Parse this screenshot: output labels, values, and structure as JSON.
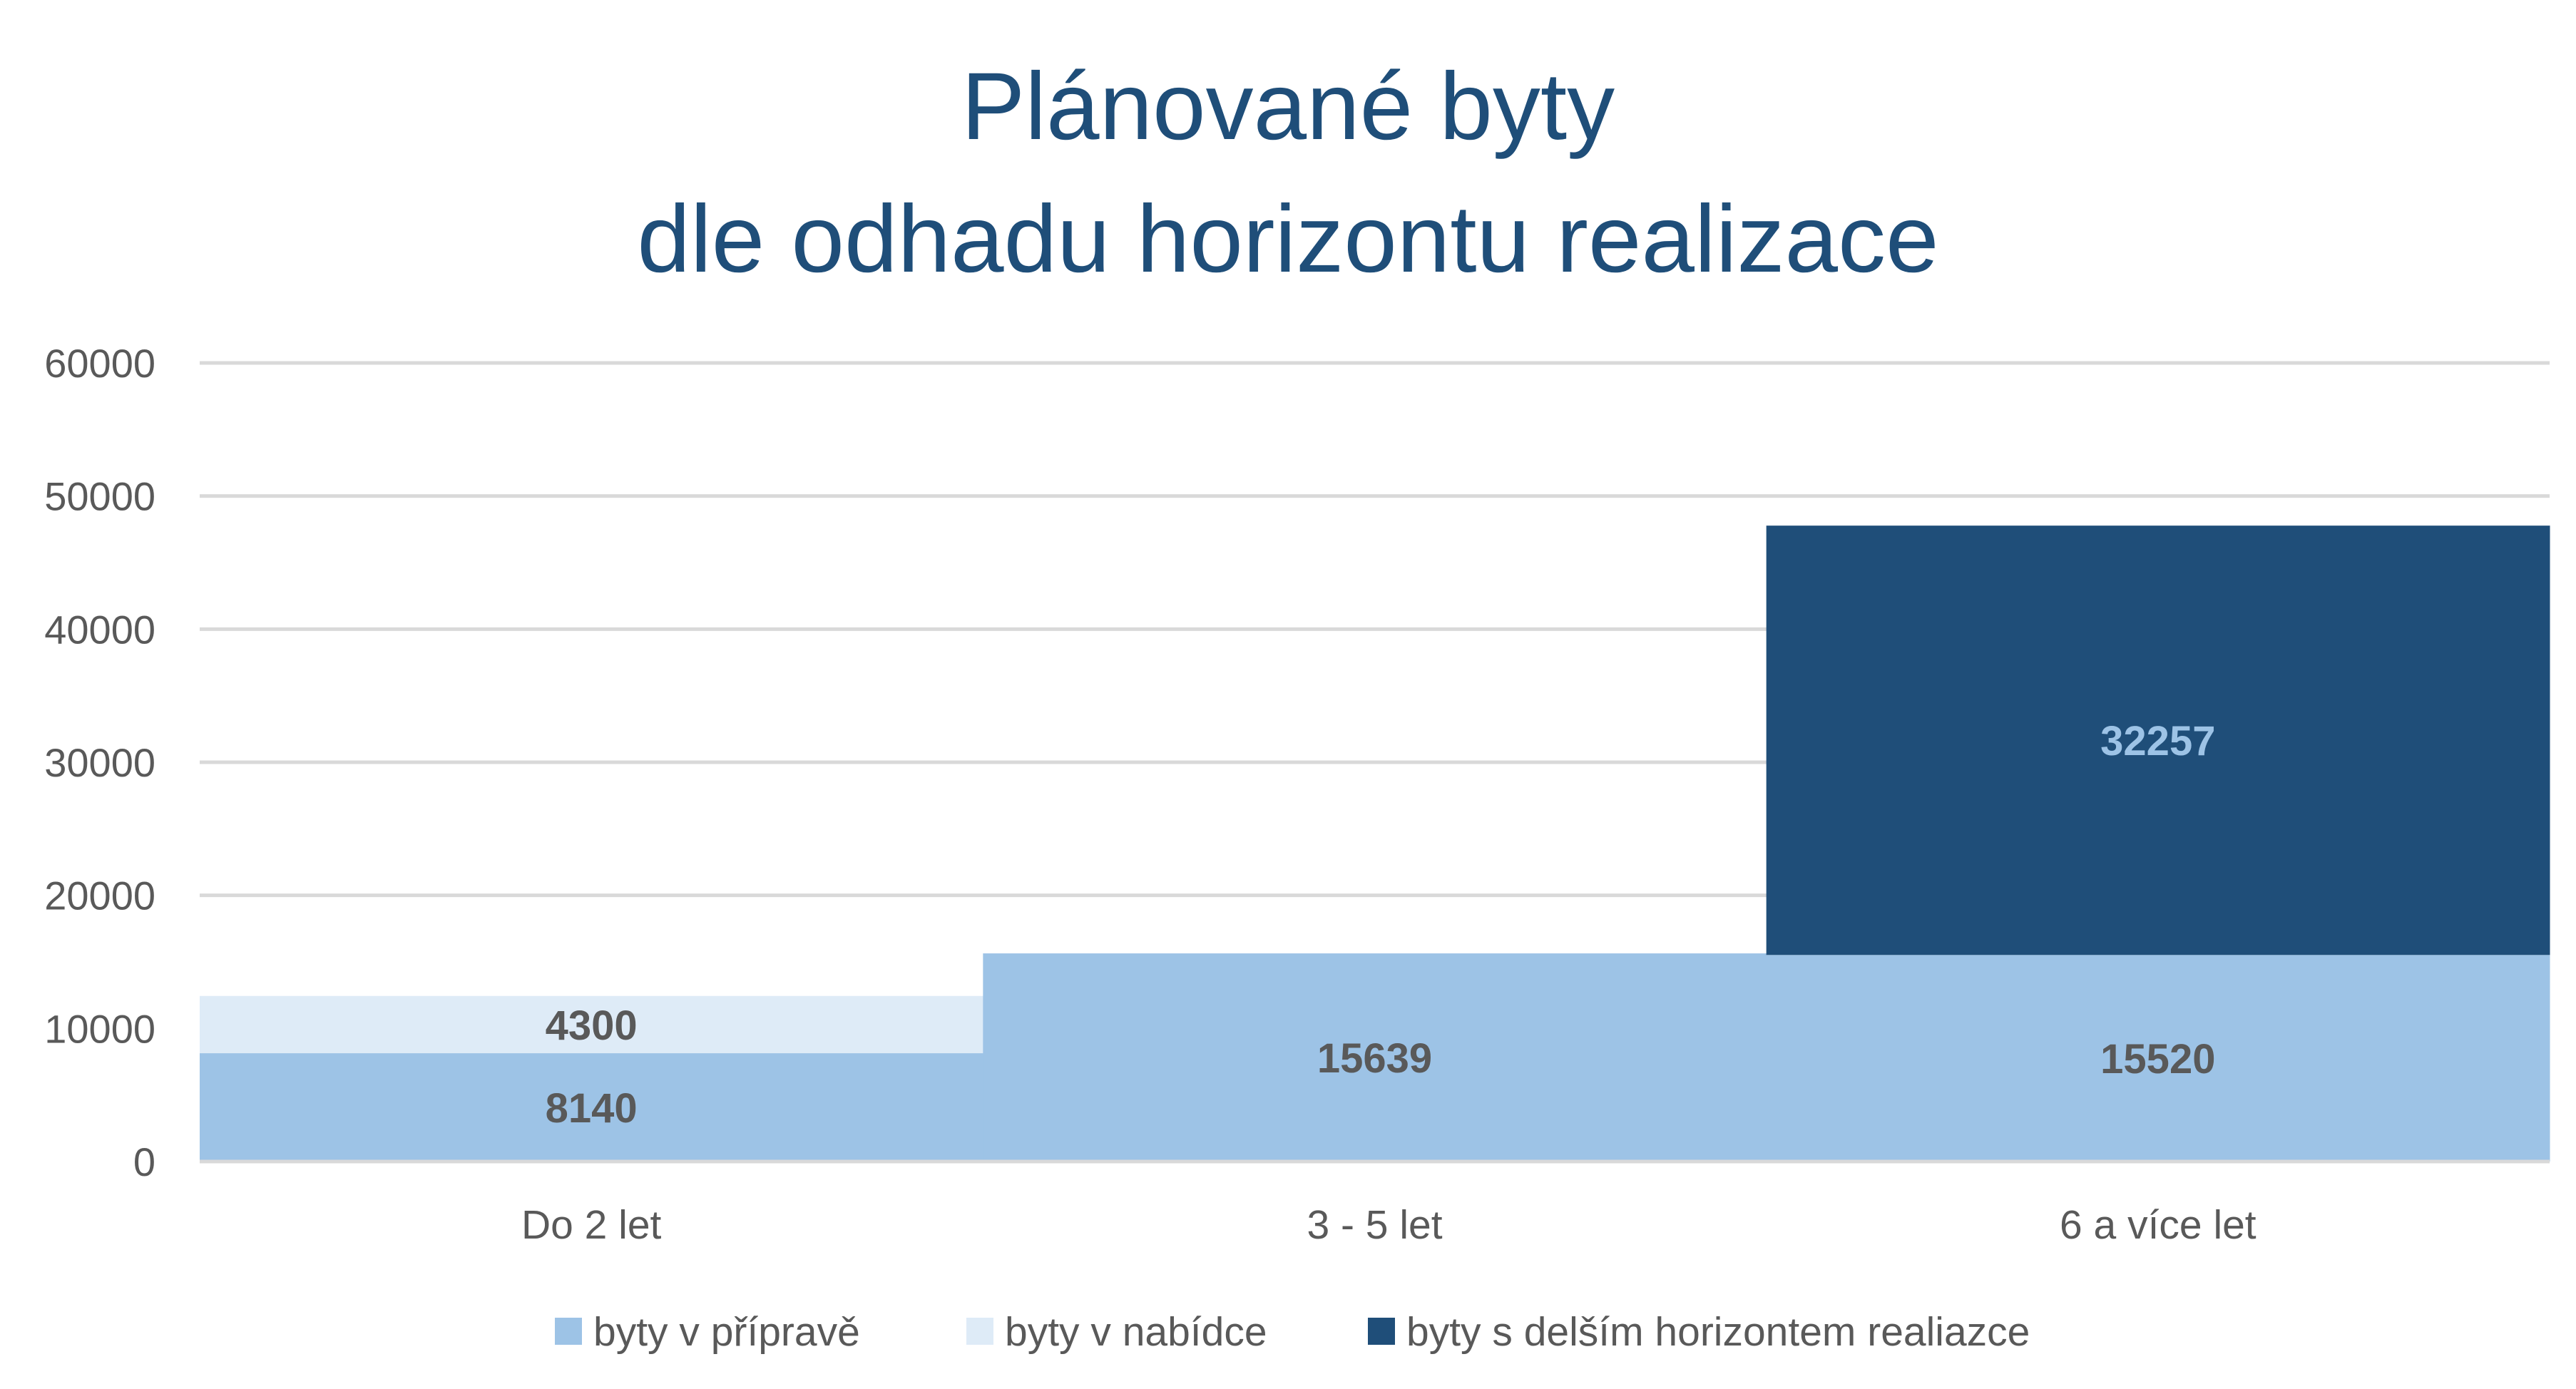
{
  "chart_data": {
    "type": "bar",
    "stacked": true,
    "title": [
      "Plánované byty",
      "dle odhadu horizontu realizace"
    ],
    "categories": [
      "Do 2 let",
      "3 - 5 let",
      "6 a více let"
    ],
    "ylim": [
      0,
      60000
    ],
    "yticks": [
      0,
      10000,
      20000,
      30000,
      40000,
      50000,
      60000
    ],
    "grid": true,
    "legend_position": "bottom",
    "series": [
      {
        "name": "byty v přípravě",
        "values": [
          8140,
          15639,
          15520
        ],
        "color": "#9DC3E6",
        "label_color": "#595959"
      },
      {
        "name": "byty v nabídce",
        "values": [
          4300,
          0,
          0
        ],
        "color": "#DEEBF7",
        "label_color": "#595959"
      },
      {
        "name": "byty s delším horizontem realiazce",
        "values": [
          0,
          0,
          32257
        ],
        "color": "#1F4E79",
        "label_color": "#9DC3E6"
      }
    ]
  }
}
